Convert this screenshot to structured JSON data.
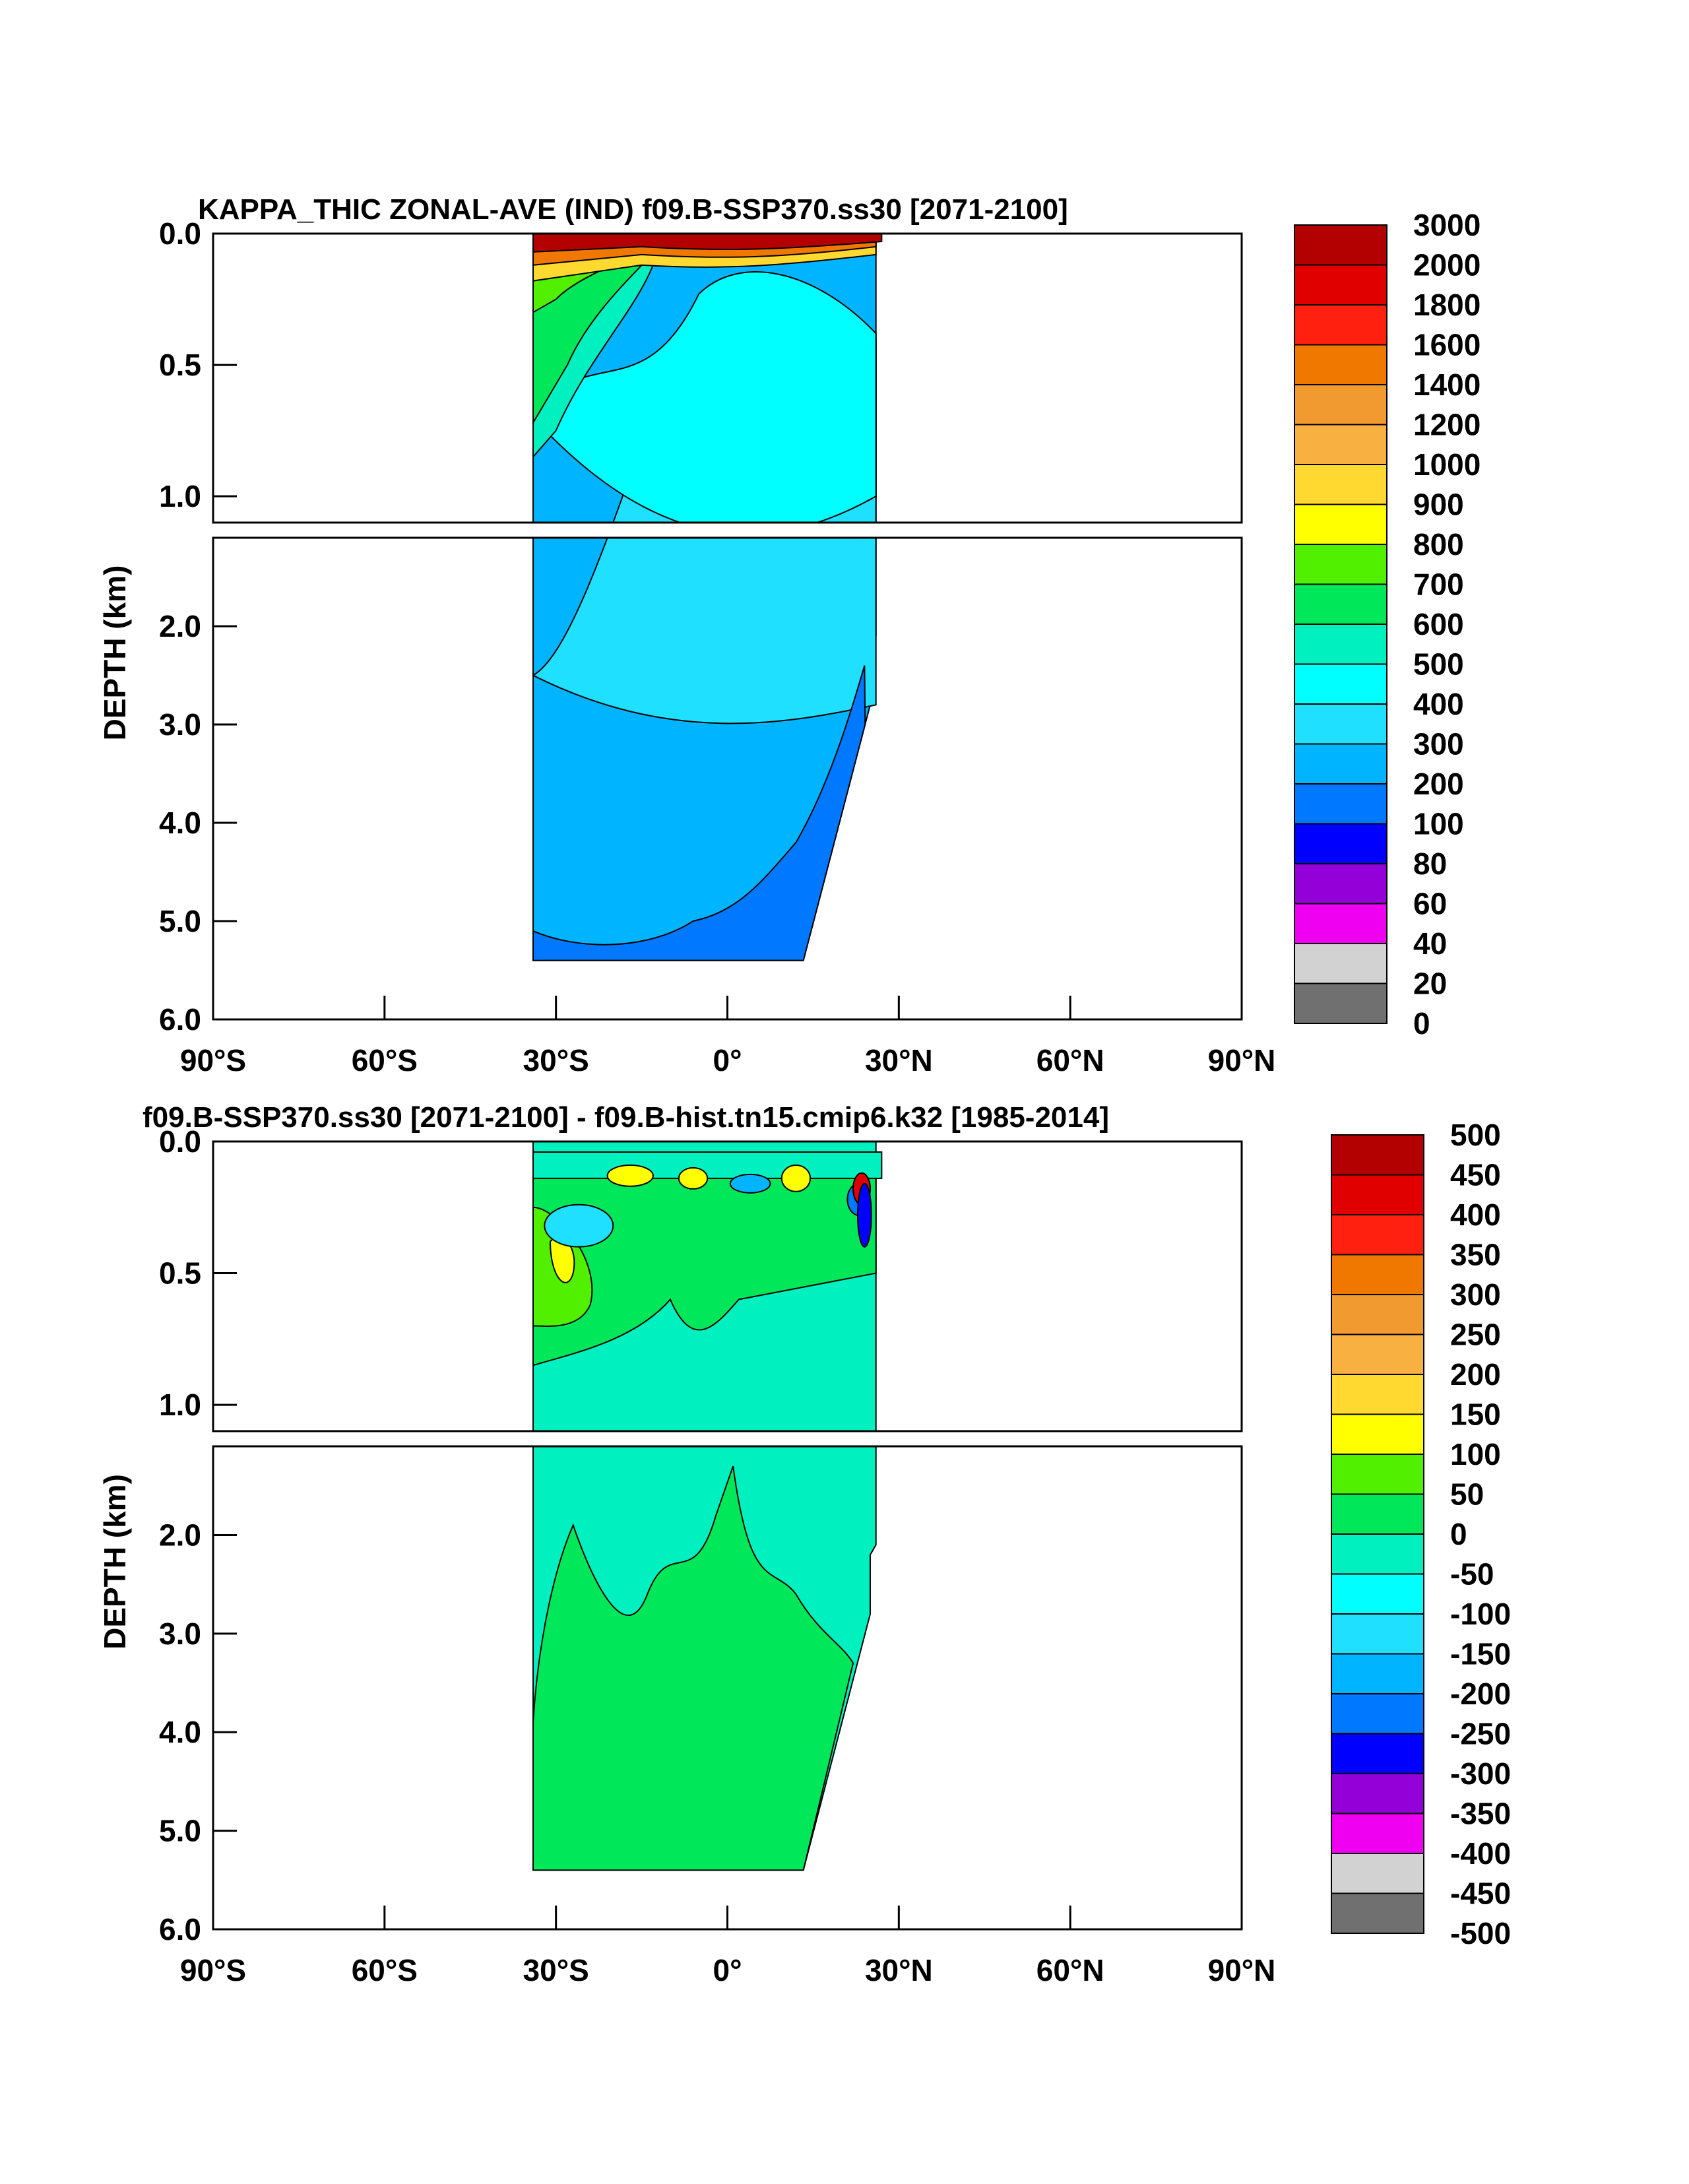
{
  "chart_data": [
    {
      "type": "heatmap",
      "title": "KAPPA_THIC ZONAL-AVE (IND) f09.B-SSP370.ss30 [2071-2100]",
      "ylabel": "DEPTH (km)",
      "x_ticks": [
        "90°S",
        "60°S",
        "30°S",
        "0°",
        "30°N",
        "60°N",
        "90°N"
      ],
      "xlim": [
        -90,
        90
      ],
      "upper_ylim": [
        0.0,
        1.1
      ],
      "lower_ylim": [
        1.1,
        6.0
      ],
      "upper_yticks": [
        "0.0",
        "0.5",
        "1.0"
      ],
      "lower_yticks": [
        "2.0",
        "3.0",
        "4.0",
        "5.0",
        "6.0"
      ],
      "data_extent": {
        "lat_min": -34,
        "lat_max": 26,
        "max_depth_km": 5.4
      },
      "colorbar_labels": [
        "3000",
        "2000",
        "1800",
        "1600",
        "1400",
        "1200",
        "1000",
        "900",
        "800",
        "700",
        "600",
        "500",
        "400",
        "300",
        "200",
        "100",
        "80",
        "60",
        "40",
        "20",
        "0"
      ],
      "colorbar_colors": [
        "#b30000",
        "#e00000",
        "#ff2010",
        "#f07800",
        "#f09a30",
        "#f8b040",
        "#ffd830",
        "#ffff00",
        "#50f000",
        "#00e85a",
        "#00f0c0",
        "#00ffff",
        "#20e0ff",
        "#00b4ff",
        "#0078ff",
        "#0000ff",
        "#9400d8",
        "#f000f0",
        "#d2d2d2",
        "#707070"
      ]
    },
    {
      "type": "heatmap",
      "title": "f09.B-SSP370.ss30 [2071-2100] - f09.B-hist.tn15.cmip6.k32 [1985-2014]",
      "ylabel": "DEPTH (km)",
      "x_ticks": [
        "90°S",
        "60°S",
        "30°S",
        "0°",
        "30°N",
        "60°N",
        "90°N"
      ],
      "xlim": [
        -90,
        90
      ],
      "upper_ylim": [
        0.0,
        1.1
      ],
      "lower_ylim": [
        1.1,
        6.0
      ],
      "upper_yticks": [
        "0.0",
        "0.5",
        "1.0"
      ],
      "lower_yticks": [
        "2.0",
        "3.0",
        "4.0",
        "5.0",
        "6.0"
      ],
      "data_extent": {
        "lat_min": -34,
        "lat_max": 26,
        "max_depth_km": 5.4
      },
      "colorbar_labels": [
        "500",
        "450",
        "400",
        "350",
        "300",
        "250",
        "200",
        "150",
        "100",
        "50",
        "0",
        "-50",
        "-100",
        "-150",
        "-200",
        "-250",
        "-300",
        "-350",
        "-400",
        "-450",
        "-500"
      ],
      "colorbar_colors": [
        "#b30000",
        "#e00000",
        "#ff2010",
        "#f07800",
        "#f09a30",
        "#f8b040",
        "#ffd830",
        "#ffff00",
        "#50f000",
        "#00e85a",
        "#00f0c0",
        "#00ffff",
        "#20e0ff",
        "#00b4ff",
        "#0078ff",
        "#0000ff",
        "#9400d8",
        "#f000f0",
        "#d2d2d2",
        "#707070"
      ]
    }
  ]
}
